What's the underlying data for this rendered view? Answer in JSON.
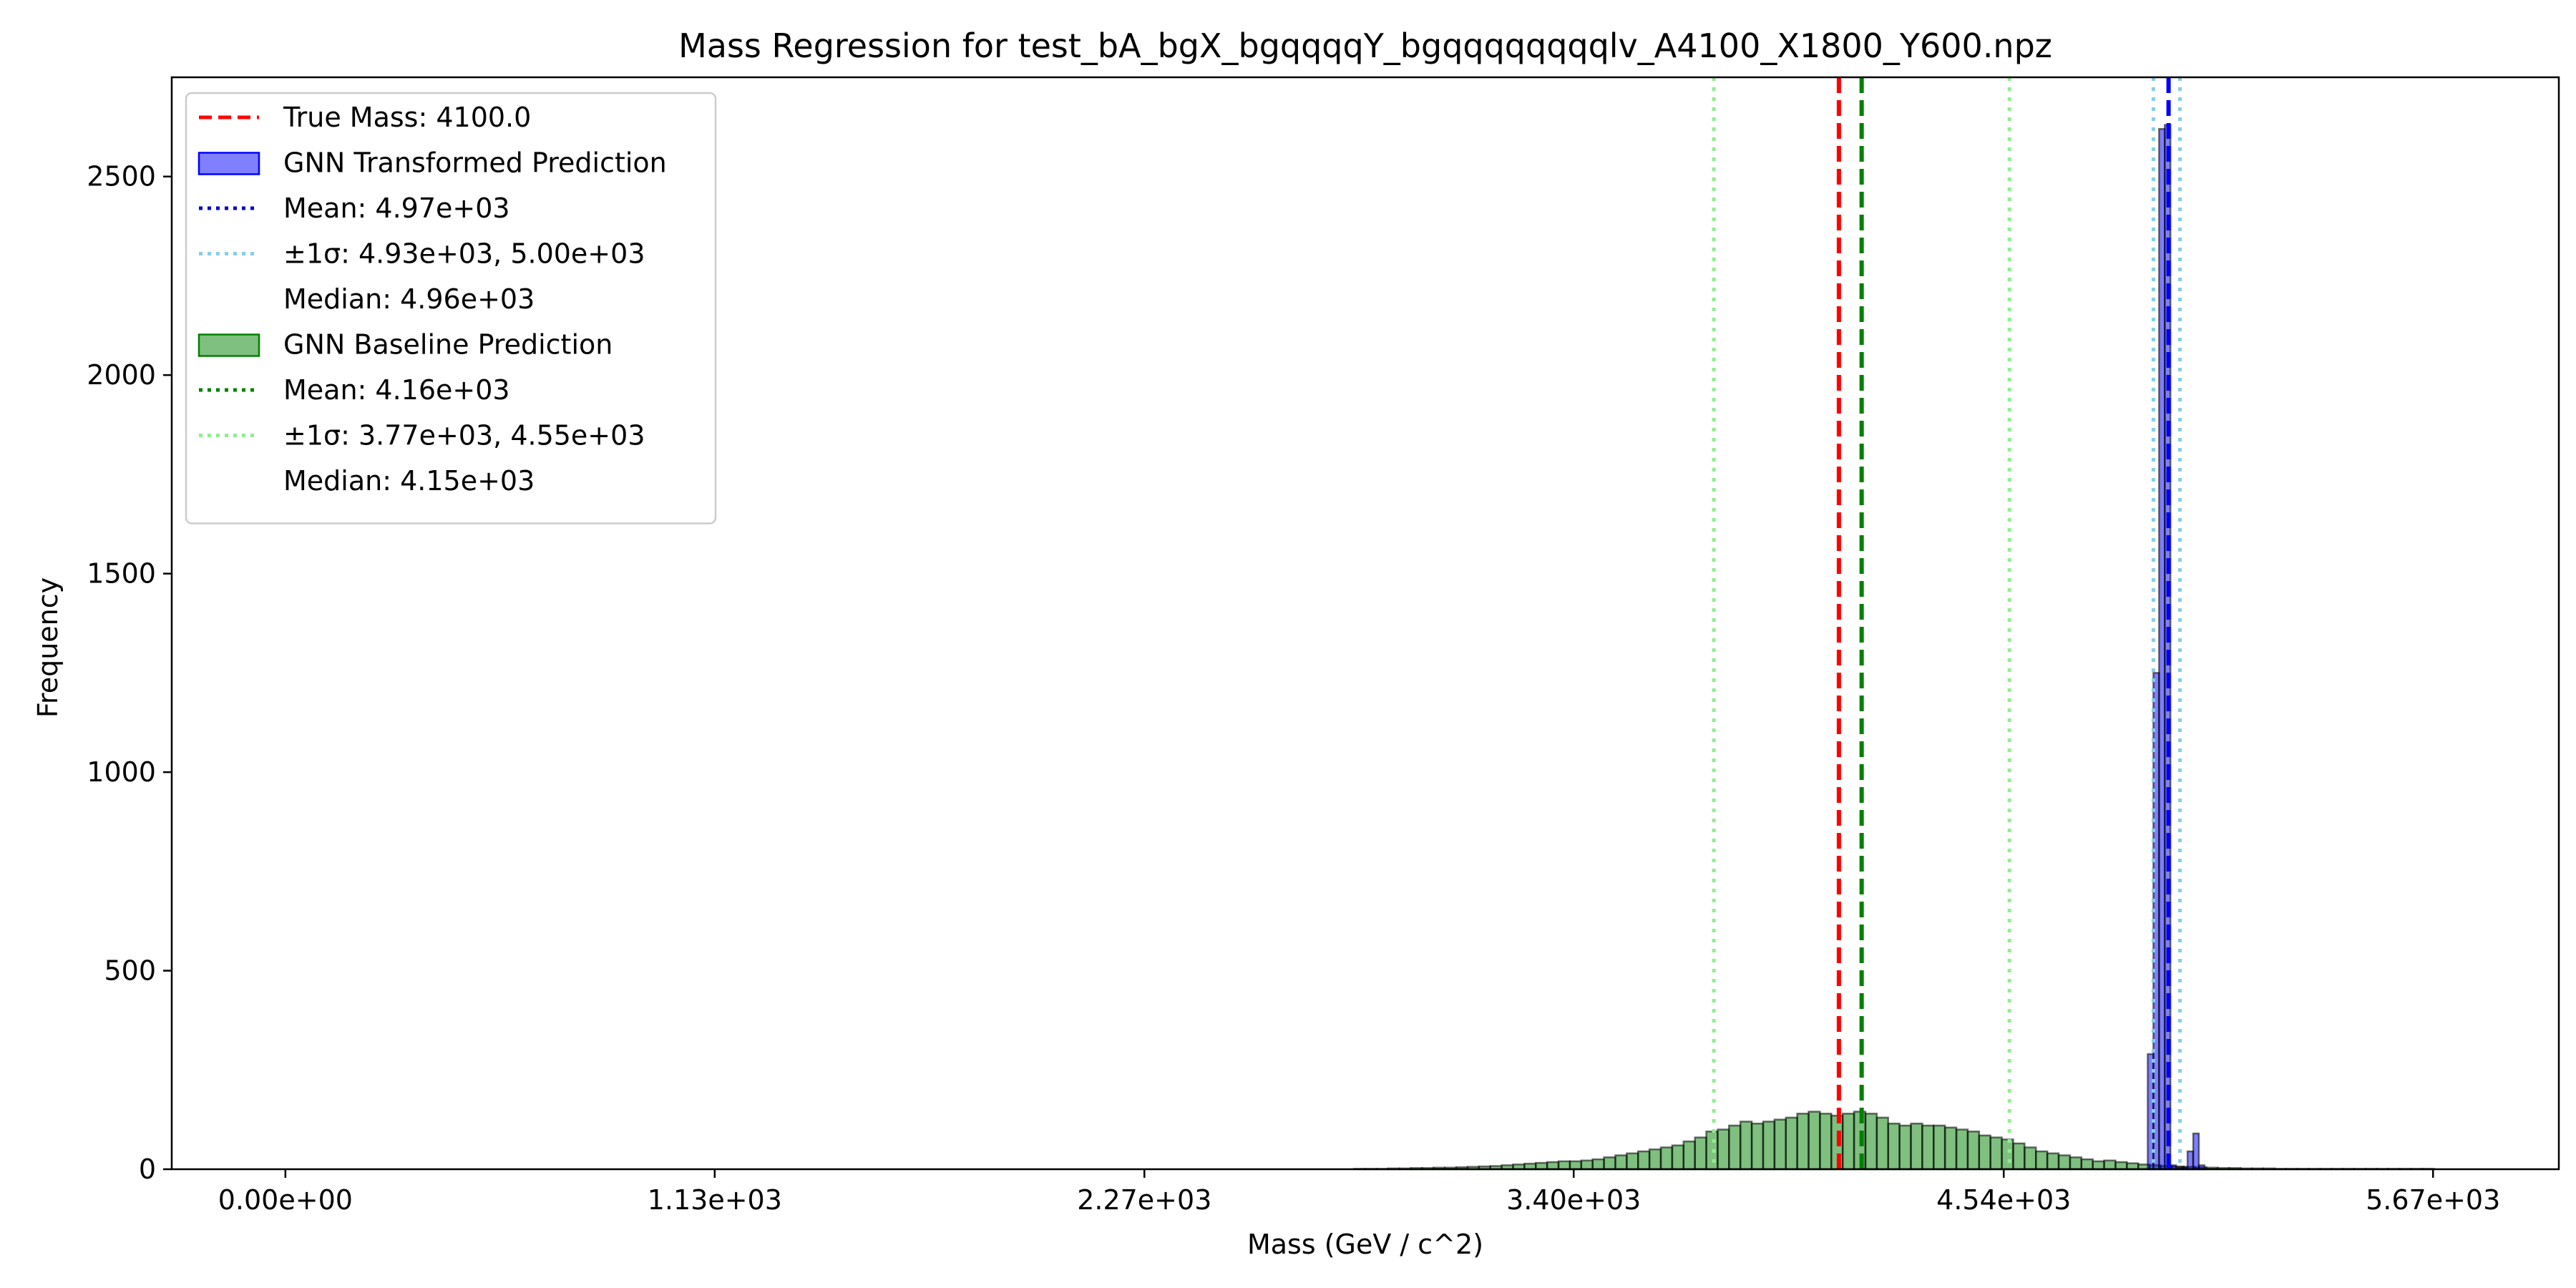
{
  "chart_data": {
    "type": "histogram",
    "title": "Mass Regression for test_bA_bgX_bgqqqqY_bgqqqqqqqqlv_A4100_X1800_Y600.npz",
    "xlabel": "Mass (GeV / c^2)",
    "ylabel": "Frequency",
    "xlim": [
      -300,
      6000
    ],
    "ylim": [
      0,
      2750
    ],
    "x_ticks": [
      0,
      1133,
      2267,
      3400,
      4535,
      5668
    ],
    "x_tick_labels": [
      "0.00e+00",
      "1.13e+03",
      "2.27e+03",
      "3.40e+03",
      "4.54e+03",
      "5.67e+03"
    ],
    "y_ticks": [
      0,
      500,
      1000,
      1500,
      2000,
      2500
    ],
    "y_tick_labels": [
      "0",
      "500",
      "1000",
      "1500",
      "2000",
      "2500"
    ],
    "grid": false,
    "legend_position": "upper-left",
    "legend": [
      {
        "label": "True Mass: 4100.0",
        "swatch": "dashed-line",
        "color": "#ff0000"
      },
      {
        "label": "GNN Transformed Prediction",
        "swatch": "patch",
        "color": "#0000ff"
      },
      {
        "label": "Mean: 4.97e+03",
        "swatch": "dotted-line",
        "color": "#0000cc"
      },
      {
        "label": "±1σ: 4.93e+03, 5.00e+03",
        "swatch": "dotted-line",
        "color": "#87ceeb"
      },
      {
        "label": "Median: 4.96e+03",
        "swatch": "none",
        "color": "#ffffff"
      },
      {
        "label": "GNN Baseline Prediction",
        "swatch": "patch",
        "color": "#008000"
      },
      {
        "label": "Mean: 4.16e+03",
        "swatch": "dotted-line",
        "color": "#008000"
      },
      {
        "label": "±1σ: 3.77e+03, 4.55e+03",
        "swatch": "dotted-line",
        "color": "#90ee90"
      },
      {
        "label": "Median: 4.15e+03",
        "swatch": "none",
        "color": "#ffffff"
      }
    ],
    "vlines": [
      {
        "x": 4100,
        "color": "#ff0000",
        "style": "dashed"
      },
      {
        "x": 4160,
        "color": "#008000",
        "style": "dashed"
      },
      {
        "x": 3770,
        "color": "#90ee90",
        "style": "dotted"
      },
      {
        "x": 4550,
        "color": "#90ee90",
        "style": "dotted"
      },
      {
        "x": 4930,
        "color": "#87ceeb",
        "style": "dotted"
      },
      {
        "x": 5000,
        "color": "#87ceeb",
        "style": "dotted"
      },
      {
        "x": 4970,
        "color": "#0000ff",
        "style": "dashed"
      }
    ],
    "series": [
      {
        "name": "GNN Baseline Prediction",
        "color": "#008000",
        "bin_width": 30,
        "bins_start": [
          2820,
          2850,
          2880,
          2910,
          2940,
          2970,
          3000,
          3030,
          3060,
          3090,
          3120,
          3150,
          3180,
          3210,
          3240,
          3270,
          3300,
          3330,
          3360,
          3390,
          3420,
          3450,
          3480,
          3510,
          3540,
          3570,
          3600,
          3630,
          3660,
          3690,
          3720,
          3750,
          3780,
          3810,
          3840,
          3870,
          3900,
          3930,
          3960,
          3990,
          4020,
          4050,
          4080,
          4110,
          4140,
          4170,
          4200,
          4230,
          4260,
          4290,
          4320,
          4350,
          4380,
          4410,
          4440,
          4470,
          4500,
          4530,
          4560,
          4590,
          4620,
          4650,
          4680,
          4710,
          4740,
          4770,
          4800,
          4830,
          4860,
          4890,
          4920,
          4950,
          4980,
          5010,
          5040,
          5070,
          5100,
          5130,
          5160,
          5190,
          5220,
          5250,
          5280,
          5310,
          5340,
          5370,
          5400,
          5430,
          5460,
          5490,
          5520,
          5550,
          5580,
          5610,
          5640
        ],
        "values": [
          1,
          1,
          1,
          2,
          2,
          3,
          3,
          4,
          4,
          5,
          6,
          7,
          8,
          10,
          12,
          14,
          16,
          18,
          20,
          20,
          22,
          25,
          30,
          35,
          40,
          45,
          50,
          55,
          60,
          70,
          80,
          95,
          100,
          110,
          120,
          115,
          120,
          125,
          130,
          140,
          145,
          140,
          135,
          140,
          145,
          140,
          130,
          115,
          110,
          115,
          110,
          110,
          105,
          100,
          95,
          85,
          80,
          75,
          65,
          55,
          45,
          40,
          35,
          30,
          25,
          20,
          22,
          18,
          15,
          12,
          10,
          8,
          7,
          6,
          5,
          4,
          3,
          3,
          2,
          2,
          2,
          1,
          1,
          1,
          1,
          1,
          1,
          1,
          1,
          1,
          1,
          1,
          1,
          1,
          1
        ]
      },
      {
        "name": "GNN Transformed Prediction",
        "color": "#0000ff",
        "bin_width": 15,
        "bins_start": [
          4900,
          4915,
          4930,
          4945,
          4960,
          4975,
          4990,
          5005,
          5020,
          5035,
          5050
        ],
        "values": [
          0,
          290,
          1250,
          2620,
          2630,
          10,
          5,
          5,
          45,
          90,
          10
        ]
      }
    ]
  }
}
